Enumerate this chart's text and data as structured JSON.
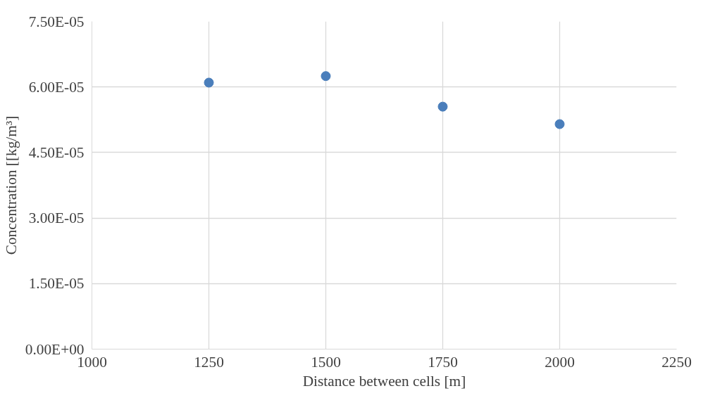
{
  "chart_data": {
    "type": "scatter",
    "xlabel": "Distance between cells [m]",
    "ylabel": "Concentration [[kg/m³]",
    "x": [
      1250,
      1500,
      1750,
      2000
    ],
    "series": [
      {
        "color": "#4a7ebb",
        "values": [
          6.1e-05,
          6.25e-05,
          5.55e-05,
          5.15e-05
        ]
      }
    ],
    "xlim": [
      1000,
      2250
    ],
    "xticks": [
      1000,
      1250,
      1500,
      1750,
      2000,
      2250
    ],
    "ylim": [
      0,
      7.5e-05
    ],
    "yticks": [
      {
        "value": 0,
        "label": "0.00E+00"
      },
      {
        "value": 1.5e-05,
        "label": "1.50E-05"
      },
      {
        "value": 3e-05,
        "label": "3.00E-05"
      },
      {
        "value": 4.5e-05,
        "label": "4.50E-05"
      },
      {
        "value": 6e-05,
        "label": "6.00E-05"
      },
      {
        "value": 7.5e-05,
        "label": "7.50E-05"
      }
    ],
    "grid": true,
    "marker": "circle"
  }
}
